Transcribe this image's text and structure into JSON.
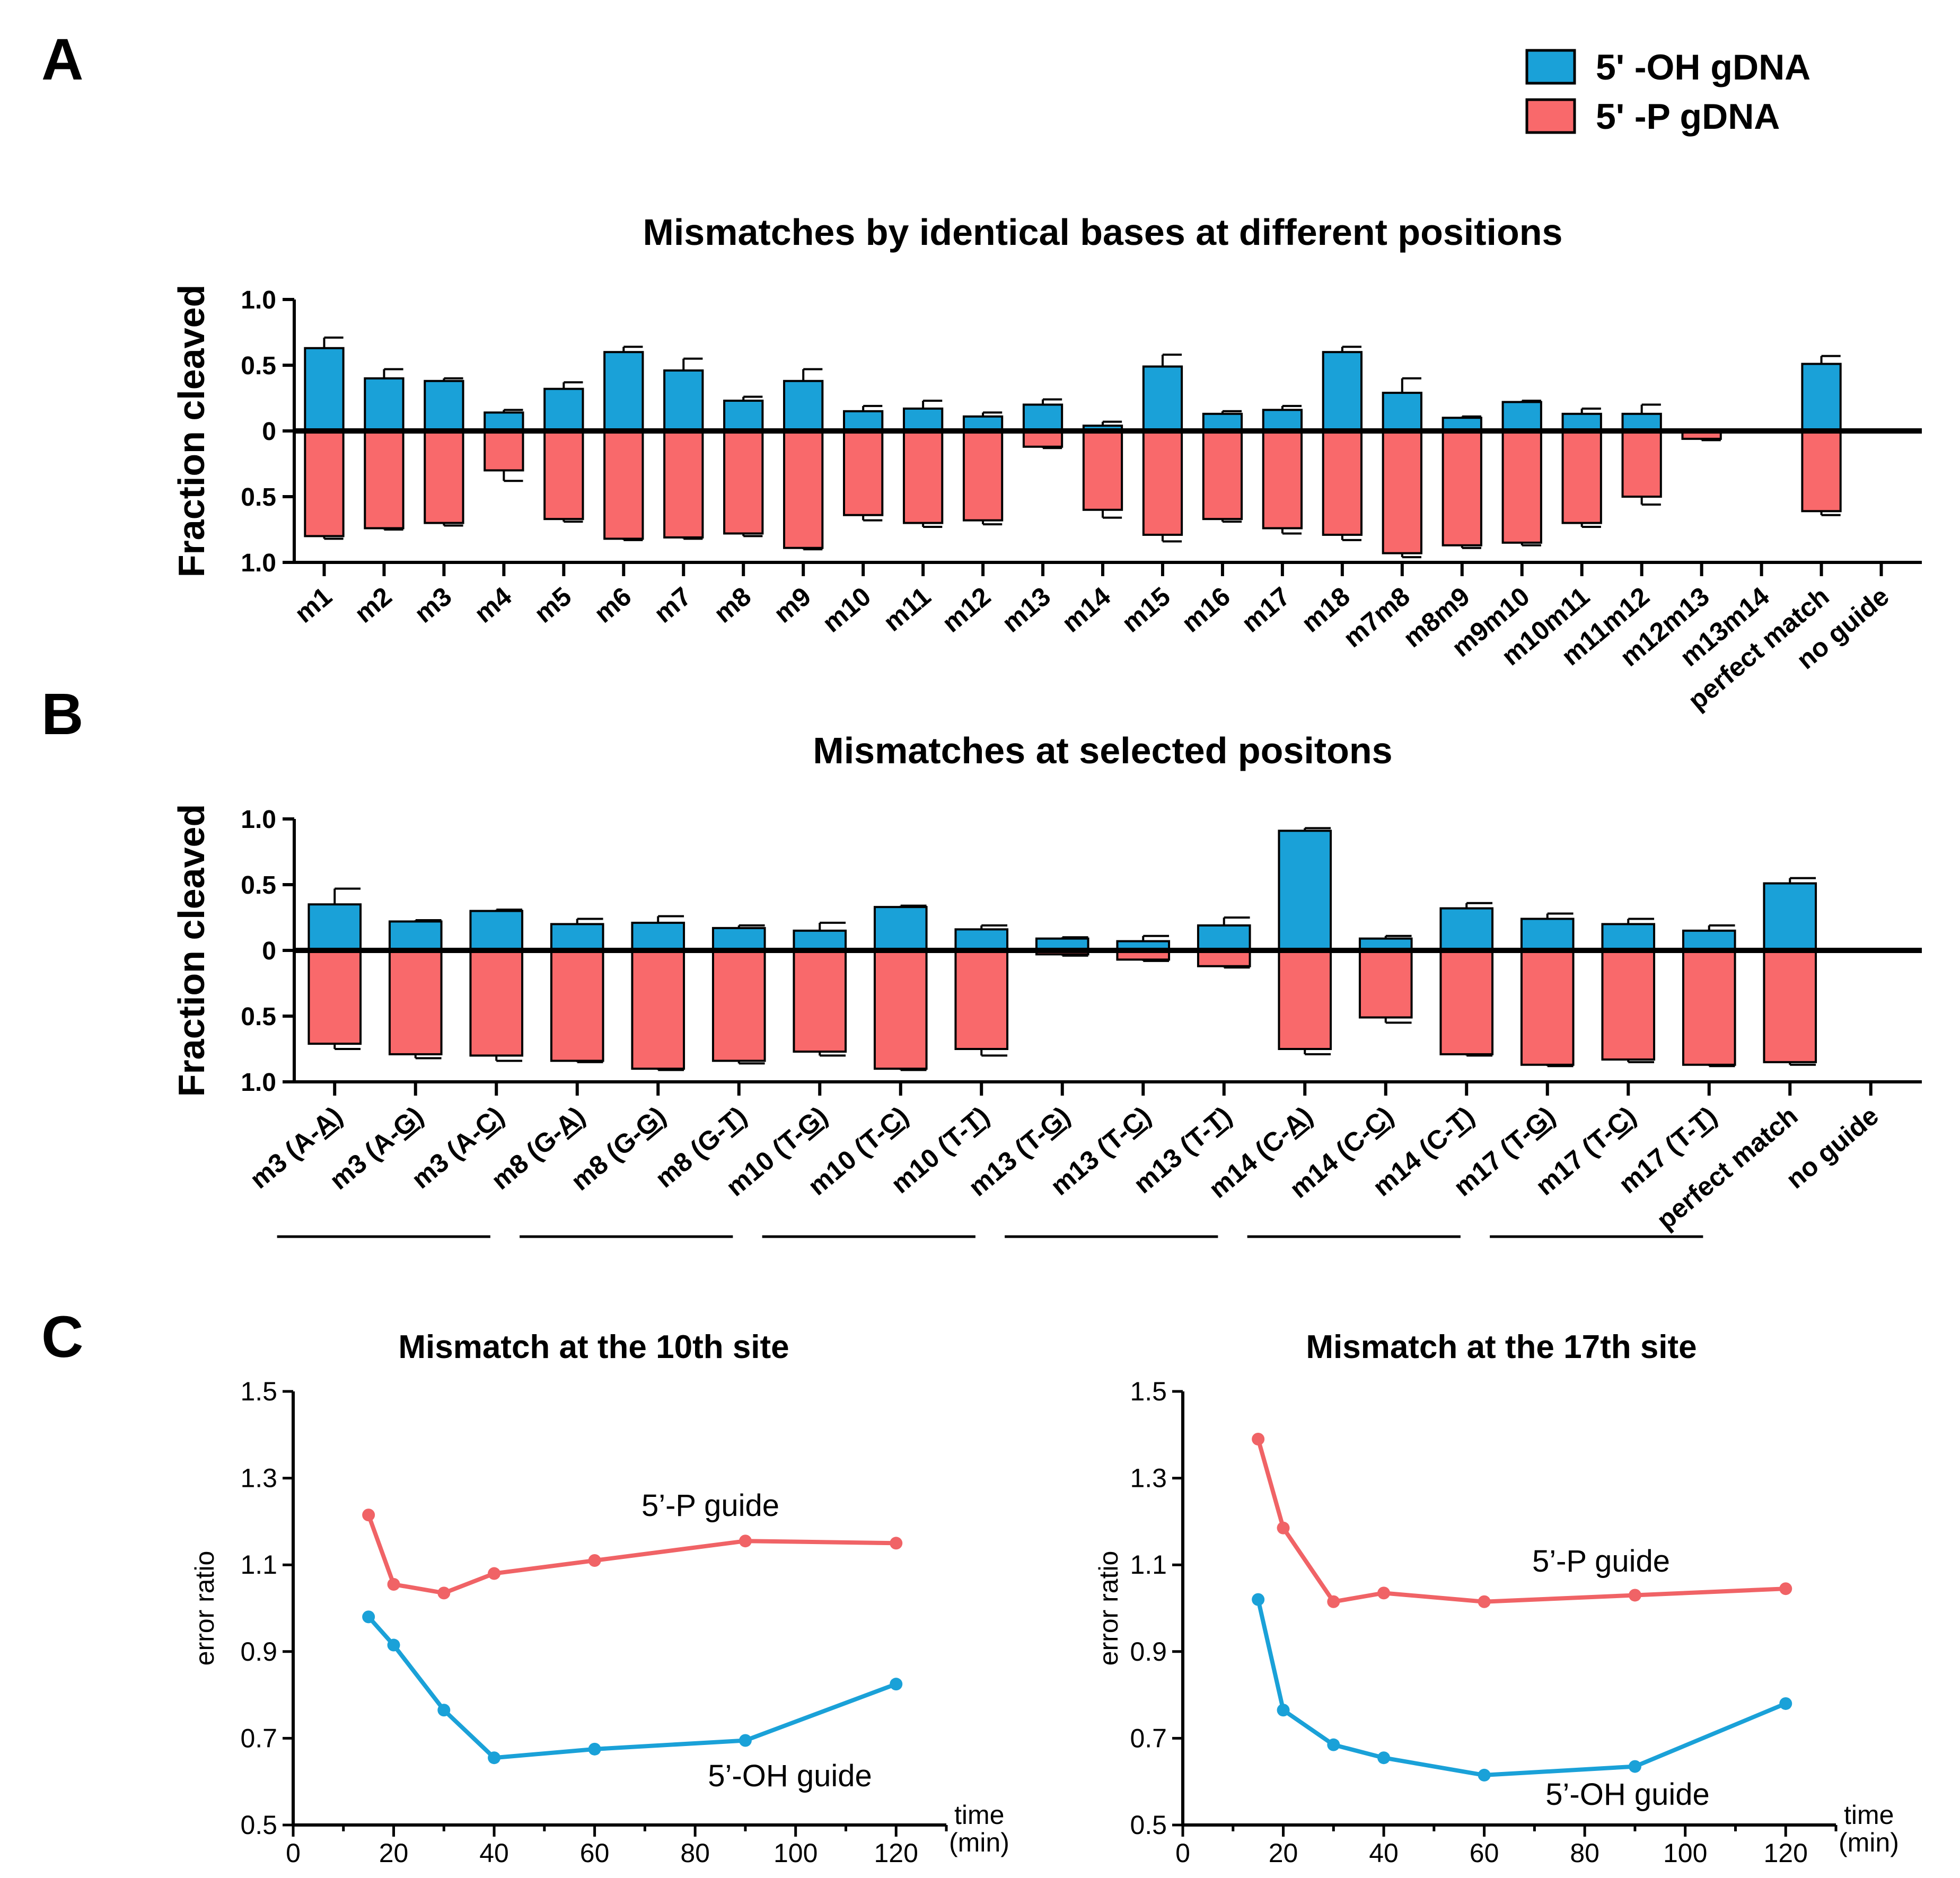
{
  "colors": {
    "oh": "#1aa1d8",
    "p": "#f9696b",
    "oh_line": "#1aa1d8",
    "p_line": "#f06366"
  },
  "legend": {
    "oh": "5' -OH gDNA",
    "p": "5' -P gDNA"
  },
  "panels": {
    "a": "A",
    "b": "B",
    "c": "C"
  },
  "chart_data": [
    {
      "id": "A",
      "type": "bar",
      "title": "Mismatches by identical bases at different positions",
      "ylabel": "Fraction cleaved",
      "yticks_top": [
        "1.0",
        "0.5",
        "0"
      ],
      "yticks_bottom": [
        "0.5",
        "1.0"
      ],
      "ylim": [
        -1.0,
        1.0
      ],
      "categories": [
        "m1",
        "m2",
        "m3",
        "m4",
        "m5",
        "m6",
        "m7",
        "m8",
        "m9",
        "m10",
        "m11",
        "m12",
        "m13",
        "m14",
        "m15",
        "m16",
        "m17",
        "m18",
        "m7m8",
        "m8m9",
        "m9m10",
        "m10m11",
        "m11m12",
        "m12m13",
        "m13m14",
        "perfect match",
        "no guide"
      ],
      "series": [
        {
          "name": "5' -OH gDNA",
          "values": [
            0.63,
            0.4,
            0.38,
            0.14,
            0.32,
            0.6,
            0.46,
            0.23,
            0.38,
            0.15,
            0.17,
            0.11,
            0.2,
            0.04,
            0.49,
            0.13,
            0.16,
            0.6,
            0.29,
            0.1,
            0.22,
            0.13,
            0.13,
            0,
            0,
            0.51,
            0
          ],
          "errors": [
            0.08,
            0.07,
            0.02,
            0.02,
            0.05,
            0.04,
            0.09,
            0.03,
            0.09,
            0.04,
            0.06,
            0.03,
            0.04,
            0.03,
            0.09,
            0.02,
            0.03,
            0.04,
            0.11,
            0.01,
            0.01,
            0.04,
            0.07,
            0,
            0,
            0.06,
            0
          ]
        },
        {
          "name": "5' -P gDNA",
          "values": [
            0.8,
            0.74,
            0.7,
            0.3,
            0.67,
            0.82,
            0.81,
            0.78,
            0.89,
            0.64,
            0.7,
            0.68,
            0.12,
            0.6,
            0.79,
            0.67,
            0.74,
            0.79,
            0.93,
            0.87,
            0.85,
            0.7,
            0.5,
            0.06,
            0,
            0.61,
            0
          ],
          "errors": [
            0.02,
            0.01,
            0.02,
            0.08,
            0.02,
            0.01,
            0.01,
            0.02,
            0.01,
            0.04,
            0.03,
            0.03,
            0.01,
            0.06,
            0.05,
            0.02,
            0.04,
            0.04,
            0.03,
            0.02,
            0.02,
            0.03,
            0.06,
            0.01,
            0,
            0.03,
            0
          ]
        }
      ]
    },
    {
      "id": "B",
      "type": "bar",
      "title": "Mismatches at selected positons",
      "ylabel": "Fraction cleaved",
      "yticks_top": [
        "1.0",
        "0.5",
        "0"
      ],
      "yticks_bottom": [
        "0.5",
        "1.0"
      ],
      "ylim": [
        -1.0,
        1.0
      ],
      "categories": [
        {
          "pre": "m3 (A-",
          "u": "A",
          "post": ")"
        },
        {
          "pre": "m3 (A-",
          "u": "G",
          "post": ")"
        },
        {
          "pre": "m3 (A-",
          "u": "C",
          "post": ")"
        },
        {
          "pre": "m8 (G-",
          "u": "A",
          "post": ")"
        },
        {
          "pre": "m8 (G-",
          "u": "G",
          "post": ")"
        },
        {
          "pre": "m8 (G-",
          "u": "T",
          "post": ")"
        },
        {
          "pre": "m10 (T-",
          "u": "G",
          "post": ")"
        },
        {
          "pre": "m10 (T-",
          "u": "C",
          "post": ")"
        },
        {
          "pre": "m10 (T-",
          "u": "T",
          "post": ")"
        },
        {
          "pre": "m13 (T-",
          "u": "G",
          "post": ")"
        },
        {
          "pre": "m13 (T-",
          "u": "C",
          "post": ")"
        },
        {
          "pre": "m13 (T-",
          "u": "T",
          "post": ")"
        },
        {
          "pre": "m14 (C-",
          "u": "A",
          "post": ")"
        },
        {
          "pre": "m14 (C-",
          "u": "C",
          "post": ")"
        },
        {
          "pre": "m14 (C-",
          "u": "T",
          "post": ")"
        },
        {
          "pre": "m17 (T-",
          "u": "G",
          "post": ")"
        },
        {
          "pre": "m17 (T-",
          "u": "C",
          "post": ")"
        },
        {
          "pre": "m17 (T-",
          "u": "T",
          "post": ")"
        },
        {
          "pre": "perfect match",
          "u": "",
          "post": ""
        },
        {
          "pre": "no guide",
          "u": "",
          "post": ""
        }
      ],
      "groups": [
        [
          0,
          2
        ],
        [
          3,
          5
        ],
        [
          6,
          8
        ],
        [
          9,
          11
        ],
        [
          12,
          14
        ],
        [
          15,
          17
        ]
      ],
      "series": [
        {
          "name": "5' -OH gDNA",
          "values": [
            0.35,
            0.22,
            0.3,
            0.2,
            0.21,
            0.17,
            0.15,
            0.33,
            0.16,
            0.09,
            0.07,
            0.19,
            0.91,
            0.09,
            0.32,
            0.24,
            0.2,
            0.15,
            0.51,
            0
          ],
          "errors": [
            0.12,
            0.01,
            0.01,
            0.04,
            0.05,
            0.02,
            0.06,
            0.01,
            0.03,
            0.01,
            0.04,
            0.06,
            0.02,
            0.02,
            0.04,
            0.04,
            0.04,
            0.04,
            0.04,
            0
          ]
        },
        {
          "name": "5' -P gDNA",
          "values": [
            0.71,
            0.79,
            0.8,
            0.84,
            0.9,
            0.84,
            0.77,
            0.9,
            0.75,
            0.03,
            0.07,
            0.12,
            0.75,
            0.51,
            0.79,
            0.87,
            0.83,
            0.87,
            0.85,
            0
          ],
          "errors": [
            0.04,
            0.03,
            0.04,
            0.01,
            0.01,
            0.02,
            0.03,
            0.01,
            0.05,
            0.01,
            0.01,
            0.01,
            0.04,
            0.04,
            0.01,
            0.01,
            0.02,
            0.01,
            0.02,
            0
          ]
        }
      ]
    },
    {
      "id": "C1",
      "type": "line",
      "title": "Mismatch at the 10th site",
      "xlabel_lines": [
        "time",
        "(min)"
      ],
      "ylabel": "error ratio",
      "xlim": [
        0,
        130
      ],
      "ylim": [
        0.5,
        1.5
      ],
      "xticks": [
        0,
        20,
        40,
        60,
        80,
        100,
        120
      ],
      "yticks": [
        0.5,
        0.7,
        0.9,
        1.1,
        1.3,
        1.5
      ],
      "ytick_labels": [
        "0.5",
        "0.7",
        "0.9",
        "1.1",
        "1.3",
        "1.5"
      ],
      "x": [
        15,
        20,
        30,
        40,
        60,
        90,
        120
      ],
      "series": [
        {
          "name": "5’-P guide",
          "values": [
            1.215,
            1.055,
            1.035,
            1.08,
            1.11,
            1.155,
            1.15
          ]
        },
        {
          "name": "5’-OH guide",
          "values": [
            0.98,
            0.915,
            0.765,
            0.655,
            0.675,
            0.695,
            0.825
          ]
        }
      ]
    },
    {
      "id": "C2",
      "type": "line",
      "title": "Mismatch at the 17th site",
      "xlabel_lines": [
        "time",
        "(min)"
      ],
      "ylabel": "error ratio",
      "xlim": [
        0,
        130
      ],
      "ylim": [
        0.5,
        1.5
      ],
      "xticks": [
        0,
        20,
        40,
        60,
        80,
        100,
        120
      ],
      "yticks": [
        0.5,
        0.7,
        0.9,
        1.1,
        1.3,
        1.5
      ],
      "ytick_labels": [
        "0.5",
        "0.7",
        "0.9",
        "1.1",
        "1.3",
        "1.5"
      ],
      "x": [
        15,
        20,
        30,
        40,
        60,
        90,
        120
      ],
      "series": [
        {
          "name": "5’-P guide",
          "values": [
            1.39,
            1.185,
            1.015,
            1.035,
            1.015,
            1.03,
            1.045
          ]
        },
        {
          "name": "5’-OH guide",
          "values": [
            1.02,
            0.765,
            0.685,
            0.655,
            0.615,
            0.635,
            0.78
          ]
        }
      ]
    }
  ]
}
